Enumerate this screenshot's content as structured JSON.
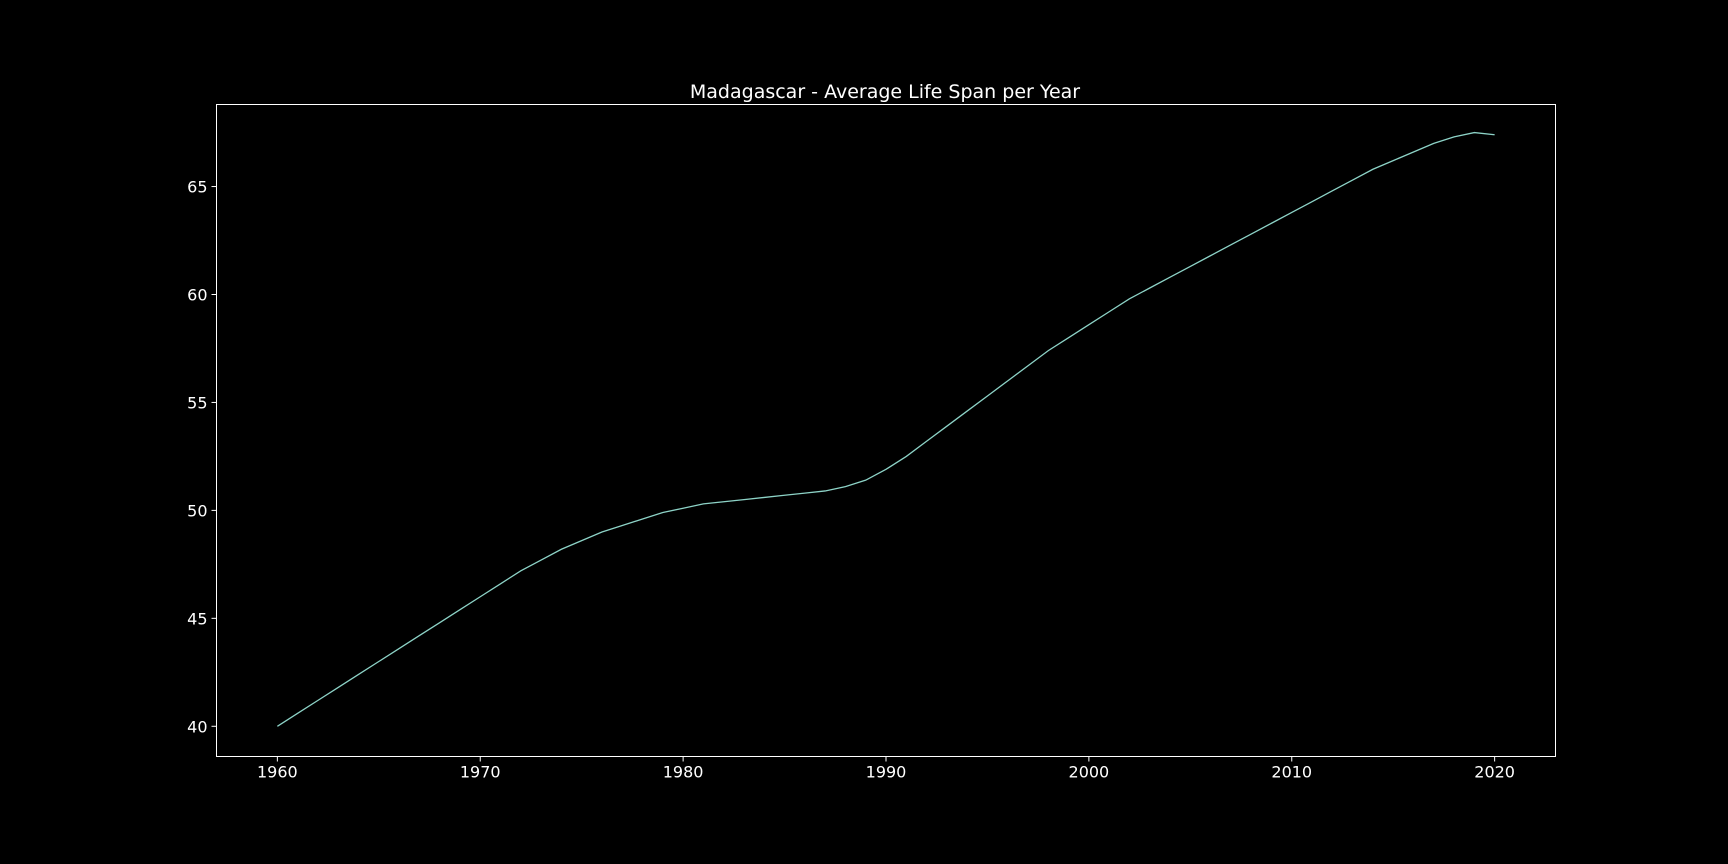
{
  "colors": {
    "background": "#000000",
    "axes": "#ffffff",
    "text": "#ffffff",
    "line": "#8dd3c7"
  },
  "chart_data": {
    "type": "line",
    "title": "Madagascar - Average Life Span per Year",
    "xlabel": "",
    "ylabel": "",
    "xlim": [
      1957,
      2023
    ],
    "ylim": [
      38.6,
      68.8
    ],
    "xticks": [
      1960,
      1970,
      1980,
      1990,
      2000,
      2010,
      2020
    ],
    "yticks": [
      40,
      45,
      50,
      55,
      60,
      65
    ],
    "grid": false,
    "legend": "none",
    "series": [
      {
        "x": [
          1960,
          1961,
          1962,
          1963,
          1964,
          1965,
          1966,
          1967,
          1968,
          1969,
          1970,
          1971,
          1972,
          1973,
          1974,
          1975,
          1976,
          1977,
          1978,
          1979,
          1980,
          1981,
          1982,
          1983,
          1984,
          1985,
          1986,
          1987,
          1988,
          1989,
          1990,
          1991,
          1992,
          1993,
          1994,
          1995,
          1996,
          1997,
          1998,
          1999,
          2000,
          2001,
          2002,
          2003,
          2004,
          2005,
          2006,
          2007,
          2008,
          2009,
          2010,
          2011,
          2012,
          2013,
          2014,
          2015,
          2016,
          2017,
          2018,
          2019,
          2020
        ],
        "y": [
          40.0,
          40.6,
          41.2,
          41.8,
          42.4,
          43.0,
          43.6,
          44.2,
          44.8,
          45.4,
          46.0,
          46.6,
          47.2,
          47.7,
          48.2,
          48.6,
          49.0,
          49.3,
          49.6,
          49.9,
          50.1,
          50.3,
          50.4,
          50.5,
          50.6,
          50.7,
          50.8,
          50.9,
          51.1,
          51.4,
          51.9,
          52.5,
          53.2,
          53.9,
          54.6,
          55.3,
          56.0,
          56.7,
          57.4,
          58.0,
          58.6,
          59.2,
          59.8,
          60.3,
          60.8,
          61.3,
          61.8,
          62.3,
          62.8,
          63.3,
          63.8,
          64.3,
          64.8,
          65.3,
          65.8,
          66.2,
          66.6,
          67.0,
          67.3,
          67.5,
          67.4
        ]
      }
    ]
  }
}
